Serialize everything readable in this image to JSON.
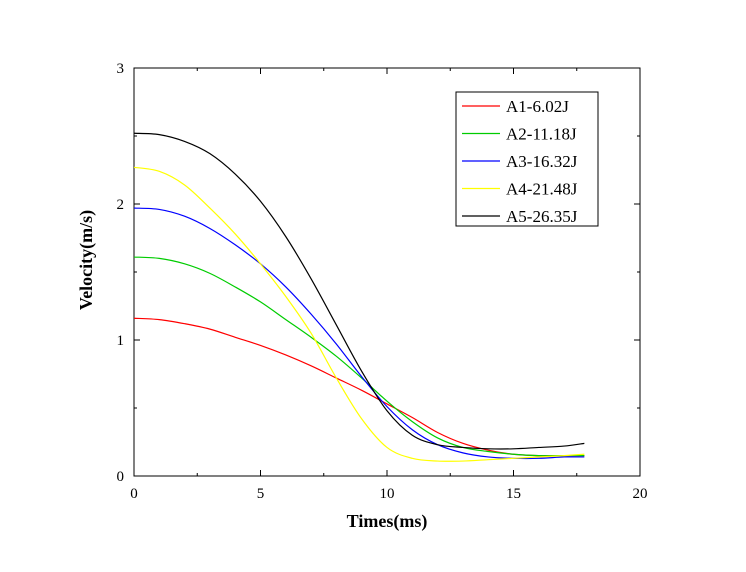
{
  "chart_data": {
    "type": "line",
    "title": "",
    "xlabel": "Times(ms)",
    "ylabel": "Velocity(m/s)",
    "xlim": [
      0,
      20
    ],
    "ylim": [
      0,
      3
    ],
    "xticks": [
      "0",
      "5",
      "10",
      "15",
      "20"
    ],
    "yticks": [
      "0",
      "1",
      "2",
      "3"
    ],
    "grid": false,
    "legend_position": "top-right",
    "series": [
      {
        "name": "A1-6.02J",
        "color": "#ff0000",
        "x": [
          0,
          1,
          2,
          3,
          4,
          5,
          6,
          7,
          8,
          9,
          10,
          11,
          12,
          13,
          14,
          15,
          16,
          17,
          17.8
        ],
        "y": [
          1.16,
          1.15,
          1.12,
          1.08,
          1.02,
          0.96,
          0.89,
          0.81,
          0.72,
          0.63,
          0.53,
          0.43,
          0.32,
          0.24,
          0.19,
          0.16,
          0.15,
          0.15,
          0.15
        ]
      },
      {
        "name": "A2-11.18J",
        "color": "#00cc00",
        "x": [
          0,
          1,
          2,
          3,
          4,
          5,
          6,
          7,
          8,
          9,
          10,
          11,
          12,
          13,
          14,
          15,
          16,
          17,
          17.8
        ],
        "y": [
          1.61,
          1.6,
          1.56,
          1.49,
          1.39,
          1.28,
          1.15,
          1.02,
          0.88,
          0.72,
          0.55,
          0.4,
          0.28,
          0.21,
          0.18,
          0.16,
          0.15,
          0.15,
          0.15
        ]
      },
      {
        "name": "A3-16.32J",
        "color": "#0000ff",
        "x": [
          0,
          1,
          2,
          3,
          4,
          5,
          6,
          7,
          8,
          9,
          10,
          11,
          12,
          13,
          14,
          15,
          16,
          17,
          17.8
        ],
        "y": [
          1.97,
          1.96,
          1.91,
          1.82,
          1.7,
          1.56,
          1.39,
          1.19,
          0.97,
          0.73,
          0.51,
          0.34,
          0.23,
          0.17,
          0.14,
          0.13,
          0.13,
          0.14,
          0.14
        ]
      },
      {
        "name": "A4-21.48J",
        "color": "#ffff00",
        "x": [
          0,
          1,
          2,
          3,
          4,
          5,
          6,
          7,
          8,
          9,
          10,
          11,
          12,
          13,
          14,
          15,
          16,
          17,
          17.8
        ],
        "y": [
          2.27,
          2.24,
          2.14,
          1.97,
          1.78,
          1.56,
          1.32,
          1.05,
          0.72,
          0.42,
          0.21,
          0.13,
          0.11,
          0.11,
          0.12,
          0.13,
          0.14,
          0.15,
          0.16
        ]
      },
      {
        "name": "A5-26.35J",
        "color": "#000000",
        "x": [
          0,
          1,
          2,
          3,
          4,
          5,
          6,
          7,
          8,
          9,
          10,
          11,
          12,
          13,
          14,
          15,
          16,
          17,
          17.8
        ],
        "y": [
          2.52,
          2.51,
          2.46,
          2.37,
          2.22,
          2.02,
          1.76,
          1.45,
          1.11,
          0.77,
          0.48,
          0.3,
          0.23,
          0.21,
          0.2,
          0.2,
          0.21,
          0.22,
          0.24
        ]
      }
    ]
  }
}
